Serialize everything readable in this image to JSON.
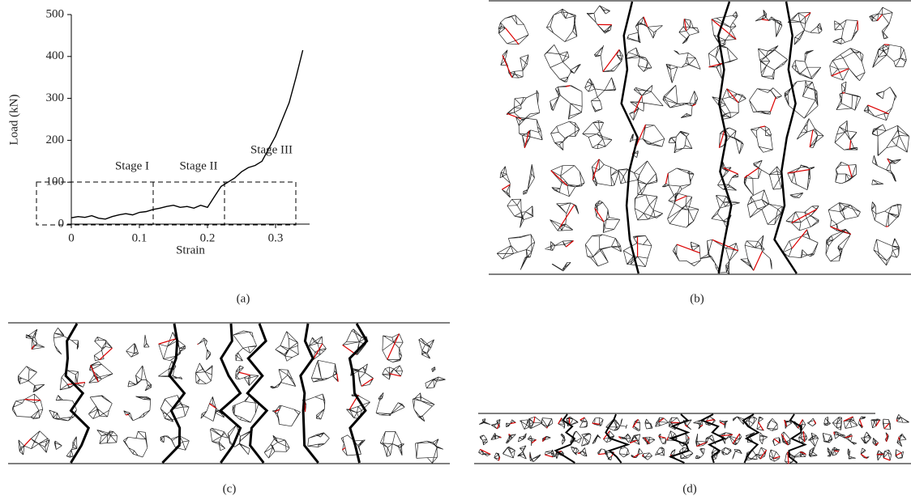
{
  "chart_data": {
    "type": "line",
    "x_label": "Strain",
    "y_label": "Load (kN)",
    "annotations": [
      "Stage I",
      "Stage II",
      "Stage III"
    ],
    "x": [
      0,
      0.01,
      0.02,
      0.03,
      0.04,
      0.05,
      0.06,
      0.07,
      0.08,
      0.09,
      0.1,
      0.11,
      0.12,
      0.13,
      0.14,
      0.15,
      0.16,
      0.17,
      0.18,
      0.19,
      0.2,
      0.21,
      0.22,
      0.23,
      0.24,
      0.25,
      0.26,
      0.27,
      0.28,
      0.29,
      0.3,
      0.31,
      0.32,
      0.33,
      0.34
    ],
    "values": [
      15,
      18,
      16,
      20,
      14,
      12,
      18,
      22,
      25,
      22,
      28,
      30,
      35,
      38,
      42,
      45,
      40,
      42,
      38,
      45,
      40,
      65,
      90,
      100,
      110,
      125,
      135,
      140,
      150,
      180,
      210,
      250,
      290,
      350,
      415
    ],
    "color": "#000000",
    "xlim": [
      0,
      0.35
    ],
    "xticks": [
      0,
      0.1,
      0.2,
      0.3
    ],
    "ylim": [
      0,
      500
    ],
    "yticks": [
      0,
      100,
      200,
      300,
      400,
      500
    ]
  },
  "panels": {
    "labels": [
      "(a)",
      "(b)",
      "(c)",
      "(d)"
    ]
  }
}
